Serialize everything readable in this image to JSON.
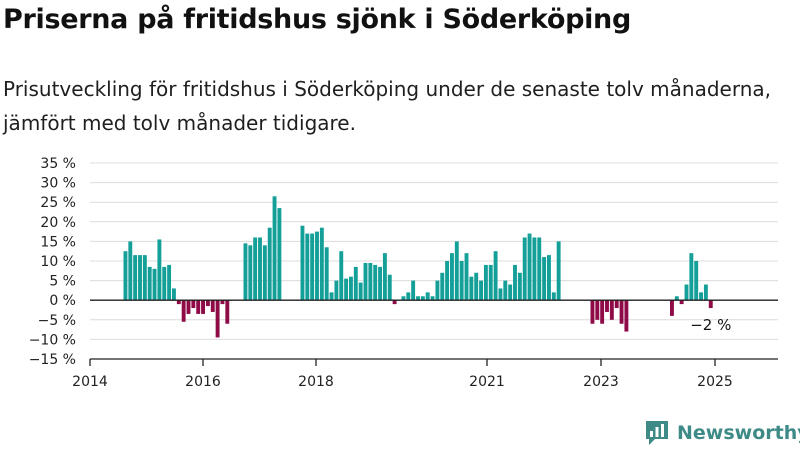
{
  "title": "Priserna på fritidshus sjönk i Söderköping",
  "subtitle": "Prisutveckling för fritidshus i Söderköping under de senaste tolv månaderna, jämfört med tolv månader tidigare.",
  "brand": "Newsworthy",
  "chart_data": {
    "type": "bar",
    "y_ticks": [
      "35 %",
      "30 %",
      "25 %",
      "20 %",
      "15 %",
      "10 %",
      "5 %",
      "0 %",
      "−5 %",
      "−10 %",
      "−15 %"
    ],
    "x_ticks": [
      "2014",
      "2016",
      "2018",
      "2021",
      "2023",
      "2025"
    ],
    "ylim": [
      -15,
      35
    ],
    "grid": true,
    "annotation": "−2 %",
    "colors": {
      "positive": "#14a098",
      "negative": "#8e0b47"
    },
    "series": [
      {
        "values": [
          12.5,
          15,
          11.5,
          11.5,
          11.5,
          8.5,
          8,
          15.5,
          8.5,
          9,
          3,
          -1,
          -5.5,
          -3.5,
          -2,
          -3.5,
          -3.5,
          -1.5,
          -3,
          -9.5,
          -1,
          -6,
          14.5,
          14,
          16,
          16,
          14,
          18.5,
          26.5,
          23.5,
          19,
          17,
          17,
          17.5,
          18.5,
          13.5,
          2,
          5,
          12.5,
          5.5,
          6,
          8.5,
          4.5,
          9.5,
          9.5,
          9,
          8.5,
          12,
          6.5,
          -1,
          1,
          2,
          5,
          1,
          1,
          2,
          1,
          5,
          7,
          10,
          12,
          15,
          10,
          12,
          6,
          7,
          5,
          9,
          9,
          12.5,
          3,
          5,
          4,
          9,
          7,
          16,
          17,
          16,
          16,
          11,
          11.5,
          2,
          15,
          -6,
          -5,
          -6,
          -3,
          -5,
          -2,
          -6,
          -8,
          -4,
          1,
          -1,
          4,
          12,
          10,
          2,
          4,
          -2
        ]
      }
    ]
  }
}
